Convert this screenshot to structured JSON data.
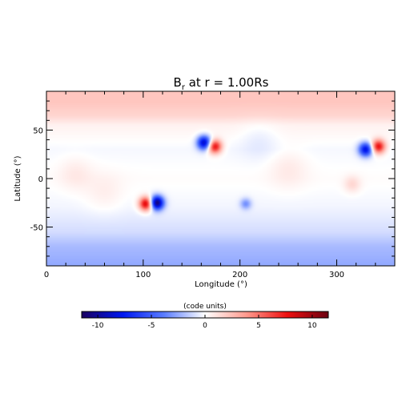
{
  "chart_data": {
    "type": "heatmap",
    "title": "B_r at r = 1.00Rs",
    "title_parts": {
      "base": "B",
      "sub": "r",
      "rest": " at r = 1.00Rs"
    },
    "xlabel": "Longitude (°)",
    "ylabel": "Latitude (°)",
    "xlim": [
      0,
      360
    ],
    "ylim": [
      -90,
      90
    ],
    "x_ticks": [
      0,
      100,
      200,
      300
    ],
    "y_ticks": [
      -50,
      0,
      50
    ],
    "colorbar": {
      "label": "(code units)",
      "range": [
        -11.5,
        11.5
      ],
      "ticks": [
        -10,
        -5,
        0,
        5,
        10
      ],
      "colormap": [
        "#1a0060",
        "#0018f0",
        "#5a7cff",
        "#ffffff",
        "#ff9b8f",
        "#ee1010",
        "#6a0010"
      ]
    },
    "background_field": [
      {
        "lat": 80,
        "value": 2.2
      },
      {
        "lat": 65,
        "value": 1.6
      },
      {
        "lat": 55,
        "value": 0.5
      },
      {
        "lat": 30,
        "value": -0.2
      },
      {
        "lat": 0,
        "value": 0.1
      },
      {
        "lat": -30,
        "value": -0.3
      },
      {
        "lat": -55,
        "value": -1.0
      },
      {
        "lat": -70,
        "value": -2.0
      },
      {
        "lat": -88,
        "value": -2.5
      }
    ],
    "features": [
      {
        "lon": 163,
        "lat": 37,
        "value": -9,
        "sigma": 5
      },
      {
        "lon": 174,
        "lat": 33,
        "value": 8,
        "sigma": 5
      },
      {
        "lon": 103,
        "lat": -26,
        "value": 9,
        "sigma": 5
      },
      {
        "lon": 114,
        "lat": -25,
        "value": -11,
        "sigma": 5
      },
      {
        "lon": 330,
        "lat": 30,
        "value": -8,
        "sigma": 5
      },
      {
        "lon": 343,
        "lat": 33,
        "value": 8,
        "sigma": 5
      },
      {
        "lon": 206,
        "lat": -26,
        "value": -3,
        "sigma": 4
      },
      {
        "lon": 316,
        "lat": -6,
        "value": 1.5,
        "sigma": 6
      },
      {
        "lon": 30,
        "lat": 5,
        "value": 0.8,
        "sigma": 12
      },
      {
        "lon": 250,
        "lat": 10,
        "value": 0.8,
        "sigma": 14
      },
      {
        "lon": 60,
        "lat": -15,
        "value": 0.7,
        "sigma": 14
      },
      {
        "lon": 220,
        "lat": 40,
        "value": -0.6,
        "sigma": 14
      }
    ]
  }
}
